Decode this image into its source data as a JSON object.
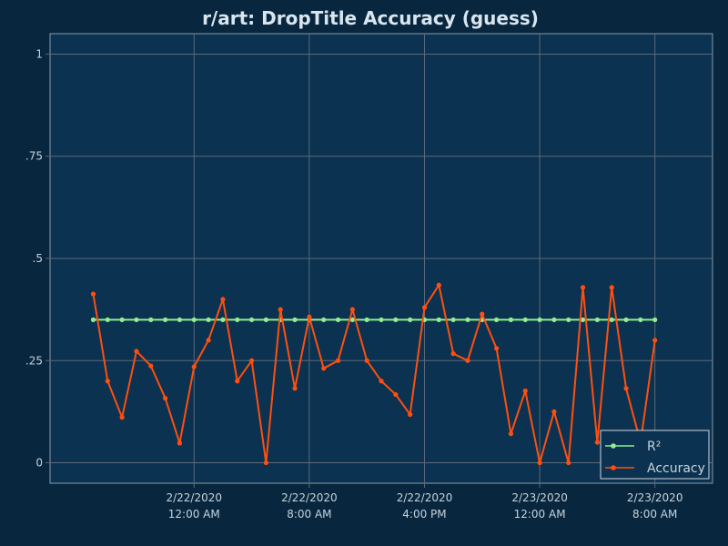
{
  "chart_data": {
    "type": "line",
    "title": "r/art: DropTitle Accuracy (guess)",
    "xlabel": "",
    "ylabel": "",
    "ylim": [
      -0.05,
      1.05
    ],
    "y_ticks": [
      {
        "value": 0,
        "label": "0"
      },
      {
        "value": 0.25,
        "label": ".25"
      },
      {
        "value": 0.5,
        "label": ".5"
      },
      {
        "value": 0.75,
        "label": ".75"
      },
      {
        "value": 1,
        "label": "1"
      }
    ],
    "x_start": "2/21/2020 5:00 PM",
    "x_step_hours": 1,
    "x_range_hours": [
      -3,
      43
    ],
    "x_ticks": [
      {
        "hours": 7,
        "date": "2/22/2020",
        "time": "12:00 AM"
      },
      {
        "hours": 15,
        "date": "2/22/2020",
        "time": "8:00 AM"
      },
      {
        "hours": 23,
        "date": "2/22/2020",
        "time": "4:00 PM"
      },
      {
        "hours": 31,
        "date": "2/23/2020",
        "time": "12:00 AM"
      },
      {
        "hours": 39,
        "date": "2/23/2020",
        "time": "8:00 AM"
      }
    ],
    "grid": true,
    "legend_position": "bottom-right",
    "series": [
      {
        "name": "R²",
        "color": "#90ee90",
        "values": [
          0.35,
          0.35,
          0.35,
          0.35,
          0.35,
          0.35,
          0.35,
          0.35,
          0.35,
          0.35,
          0.35,
          0.35,
          0.35,
          0.35,
          0.35,
          0.35,
          0.35,
          0.35,
          0.35,
          0.35,
          0.35,
          0.35,
          0.35,
          0.35,
          0.35,
          0.35,
          0.35,
          0.35,
          0.35,
          0.35,
          0.35,
          0.35,
          0.35,
          0.35,
          0.35,
          0.35,
          0.35,
          0.35,
          0.35,
          0.35
        ]
      },
      {
        "name": "Accuracy",
        "color": "#ff4f0f",
        "values": [
          0.413,
          0.2,
          0.111,
          0.273,
          0.237,
          0.158,
          0.048,
          0.235,
          0.3,
          0.4,
          0.2,
          0.25,
          0,
          0.375,
          0.182,
          0.357,
          0.231,
          0.25,
          0.375,
          0.25,
          0.2,
          0.167,
          0.118,
          0.38,
          0.435,
          0.267,
          0.25,
          0.364,
          0.28,
          0.071,
          0.176,
          0,
          0.125,
          0,
          0.429,
          0.05,
          0.429,
          0.182,
          0.05,
          0.3
        ]
      }
    ]
  },
  "colors": {
    "page_background": "#08263d",
    "plot_background": "#0b3250",
    "grid": "#5c6a78",
    "text": "#c6d3dd",
    "title": "#d9e6f0"
  }
}
